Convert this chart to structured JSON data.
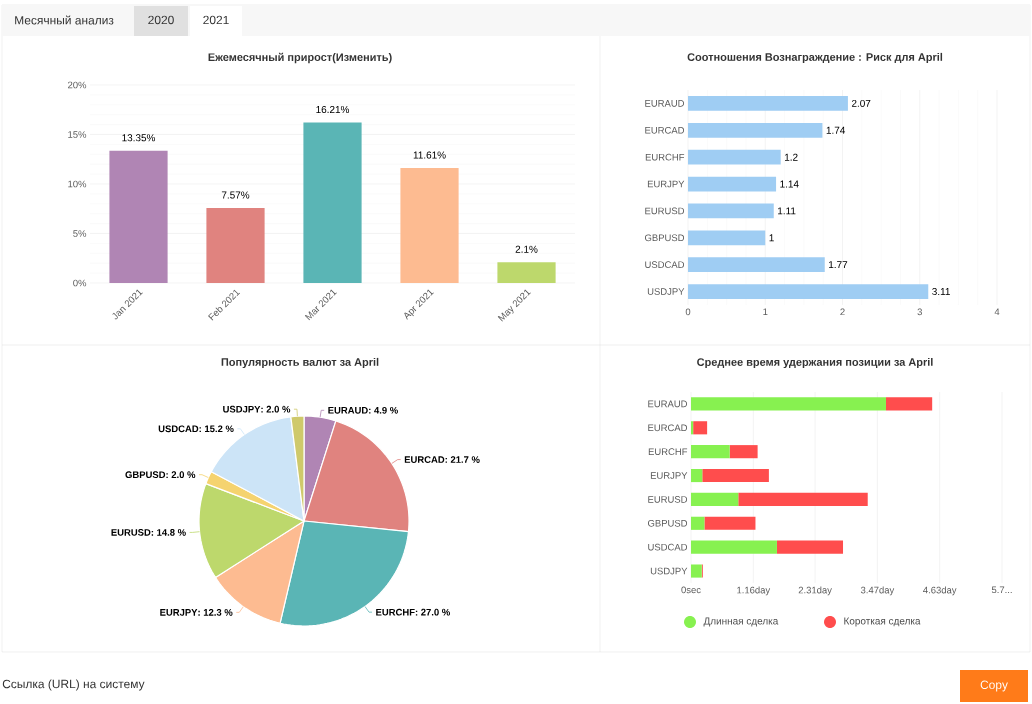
{
  "chart_data": [
    {
      "type": "other",
      "annotations": [
        "Месячный анализ",
        "2020",
        "2021",
        "Ссылка (URL) на систему",
        "Copy"
      ]
    },
    {
      "type": "bar",
      "title": "Ежемесячный прирост(Изменить)",
      "categories": [
        "Jan 2021",
        "Feb 2021",
        "Mar 2021",
        "Apr 2021",
        "May 2021"
      ],
      "values": [
        13.35,
        7.57,
        16.21,
        11.61,
        2.1
      ],
      "colors": [
        "#b085b4",
        "#e0837f",
        "#5ab5b5",
        "#fdbb91",
        "#bdd86c"
      ],
      "value_labels": [
        "13.35%",
        "7.57%",
        "16.21%",
        "11.61%",
        "2.1%"
      ],
      "ylim": [
        0,
        20
      ],
      "yticks": [
        {
          "value": 0,
          "label": "0%"
        },
        {
          "value": 5,
          "label": "5%"
        },
        {
          "value": 10,
          "label": "10%"
        },
        {
          "value": 15,
          "label": "15%"
        },
        {
          "value": 20,
          "label": "20%"
        }
      ],
      "grid": "y"
    },
    {
      "type": "bar",
      "orientation": "horizontal",
      "title": "Соотношения Вознаграждение : Риск для April",
      "categories": [
        "EURAUD",
        "EURCAD",
        "EURCHF",
        "EURJPY",
        "EURUSD",
        "GBPUSD",
        "USDCAD",
        "USDJPY"
      ],
      "values": [
        2.07,
        1.74,
        1.2,
        1.14,
        1.11,
        1,
        1.77,
        3.11
      ],
      "color": "#9fcdf3",
      "data_labels": true,
      "xlim": [
        0,
        4
      ],
      "xticks": [
        0,
        1,
        2,
        3,
        4
      ],
      "grid": "x"
    },
    {
      "type": "pie",
      "title": "Популярность валют за April",
      "categories": [
        "EURAUD",
        "EURCAD",
        "EURCHF",
        "EURJPY",
        "EURUSD",
        "GBPUSD",
        "USDCAD",
        "USDJPY"
      ],
      "values": [
        4.9,
        21.7,
        27.0,
        12.3,
        14.8,
        2.0,
        15.2,
        2.0
      ],
      "value_labels": [
        ": 4.9 %",
        ": 21.7 %",
        ": 27.0 %",
        ": 12.3 %",
        ": 14.8 %",
        ": 2.0 %",
        ": 15.2 %",
        ": 2.0 %"
      ],
      "colors": [
        "#b085b4",
        "#e0837f",
        "#5ab5b5",
        "#fdbb91",
        "#bdd86c",
        "#f5d36f",
        "#cce4f7",
        "#cfc96b"
      ]
    },
    {
      "type": "bar",
      "orientation": "horizontal",
      "stacked": true,
      "title": "Среднее время удержания позиции за April",
      "categories": [
        "EURAUD",
        "EURCAD",
        "EURCHF",
        "EURJPY",
        "EURUSD",
        "GBPUSD",
        "USDCAD",
        "USDJPY"
      ],
      "series": [
        {
          "name": "Длинная сделка",
          "color": "#87f150",
          "values": [
            3.63,
            0.04,
            0.72,
            0.21,
            0.88,
            0.25,
            1.6,
            0.2
          ]
        },
        {
          "name": "Короткая сделка",
          "color": "#ff4d4d",
          "values": [
            0.86,
            0.26,
            0.52,
            1.24,
            2.41,
            0.95,
            1.23,
            0.02
          ]
        }
      ],
      "xlim": [
        0,
        5.79
      ],
      "xticks": [
        {
          "value": 0,
          "label": "0sec"
        },
        {
          "value": 1.16,
          "label": "1.16day"
        },
        {
          "value": 2.31,
          "label": "2.31day"
        },
        {
          "value": 3.47,
          "label": "3.47day"
        },
        {
          "value": 4.63,
          "label": "4.63day"
        },
        {
          "value": 5.79,
          "label": "5.7..."
        }
      ],
      "grid": "x",
      "legend": "bottom"
    }
  ]
}
